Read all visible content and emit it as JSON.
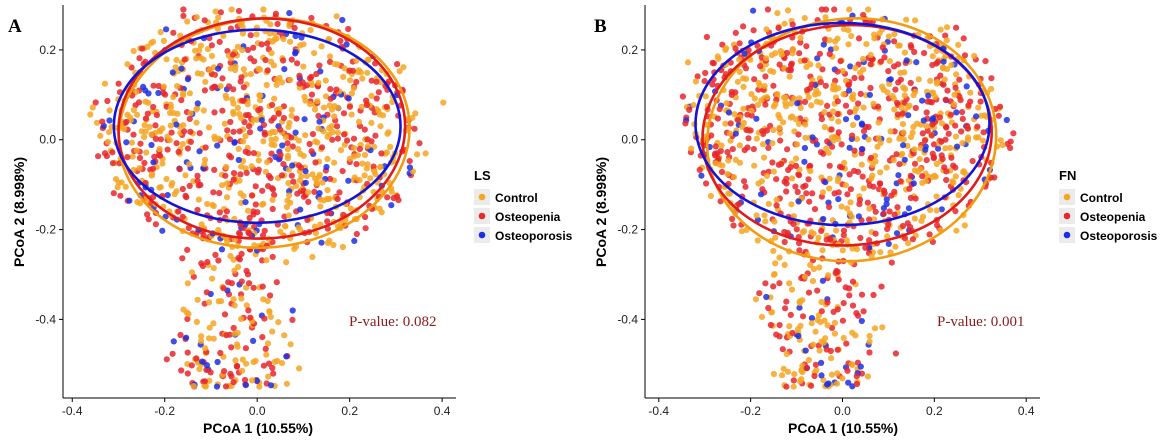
{
  "colors": {
    "Control": "#f5a623",
    "Osteopenia": "#e8262b",
    "Osteoporosis": "#1f2fe0",
    "ellipse_control": "#f39c12",
    "ellipse_osteopenia": "#e01b1b",
    "ellipse_osteoporosis": "#1414d6",
    "pvalue": "#8b1a1a"
  },
  "chart_data": [
    {
      "panel": "A",
      "type": "scatter",
      "xlabel": "PCoA 1 (10.55%)",
      "ylabel": "PCoA 2 (8.998%)",
      "xlim": [
        -0.42,
        0.43
      ],
      "ylim": [
        -0.575,
        0.3
      ],
      "xticks": [
        -0.4,
        -0.2,
        0.0,
        0.2,
        0.4
      ],
      "xtick_labels": [
        "-0.4",
        "-0.2",
        "0.0",
        "0.2",
        "0.4"
      ],
      "yticks": [
        0.2,
        0.0,
        -0.2,
        -0.4
      ],
      "ytick_labels": [
        "0.2",
        "0.0",
        "-0.2",
        "-0.4"
      ],
      "legend_title": "LS",
      "legend_entries": [
        "Control",
        "Osteopenia",
        "Osteoporosis"
      ],
      "legend_position": "right",
      "annotation": "P-value: 0.082",
      "point_cloud": {
        "groups": [
          "Control",
          "Osteopenia",
          "Osteoporosis"
        ],
        "counts": [
          650,
          500,
          130
        ],
        "core_center": [
          0.0,
          0.02
        ],
        "core_radius": [
          0.32,
          0.25
        ],
        "tail_x_range": [
          -0.15,
          0.05
        ],
        "tail_y_range": [
          -0.55,
          -0.2
        ]
      },
      "ellipses": [
        {
          "series": "Control",
          "cx": 0.015,
          "cy": 0.015,
          "rx": 0.315,
          "ry": 0.255,
          "angle_deg": 5
        },
        {
          "series": "Osteopenia",
          "cx": 0.01,
          "cy": 0.025,
          "rx": 0.31,
          "ry": 0.245,
          "angle_deg": 2
        },
        {
          "series": "Osteoporosis",
          "cx": 0.0,
          "cy": 0.03,
          "rx": 0.31,
          "ry": 0.215,
          "angle_deg": 0
        }
      ]
    },
    {
      "panel": "B",
      "type": "scatter",
      "xlabel": "PCoA 1 (10.55%)",
      "ylabel": "PCoA 2 (8.998%)",
      "xlim": [
        -0.43,
        0.43
      ],
      "ylim": [
        -0.575,
        0.3
      ],
      "xticks": [
        -0.4,
        -0.2,
        0.0,
        0.2,
        0.4
      ],
      "xtick_labels": [
        "-0.4",
        "-0.2",
        "0.0",
        "0.2",
        "0.4"
      ],
      "yticks": [
        0.2,
        0.0,
        -0.2,
        -0.4
      ],
      "ytick_labels": [
        "0.2",
        "0.0",
        "-0.2",
        "-0.4"
      ],
      "legend_title": "FN",
      "legend_entries": [
        "Control",
        "Osteopenia",
        "Osteoporosis"
      ],
      "legend_position": "right",
      "annotation": "P-value: 0.001",
      "point_cloud": {
        "groups": [
          "Control",
          "Osteopenia",
          "Osteoporosis"
        ],
        "counts": [
          600,
          560,
          130
        ],
        "core_center": [
          0.0,
          0.02
        ],
        "core_radius": [
          0.32,
          0.25
        ],
        "tail_x_range": [
          -0.15,
          0.05
        ],
        "tail_y_range": [
          -0.55,
          -0.2
        ]
      },
      "ellipses": [
        {
          "series": "Control",
          "cx": 0.02,
          "cy": 0.0,
          "rx": 0.315,
          "ry": 0.27,
          "angle_deg": 5
        },
        {
          "series": "Osteopenia",
          "cx": 0.01,
          "cy": 0.01,
          "rx": 0.315,
          "ry": 0.245,
          "angle_deg": 3
        },
        {
          "series": "Osteoporosis",
          "cx": 0.0,
          "cy": 0.035,
          "rx": 0.32,
          "ry": 0.225,
          "angle_deg": 0
        }
      ]
    }
  ]
}
